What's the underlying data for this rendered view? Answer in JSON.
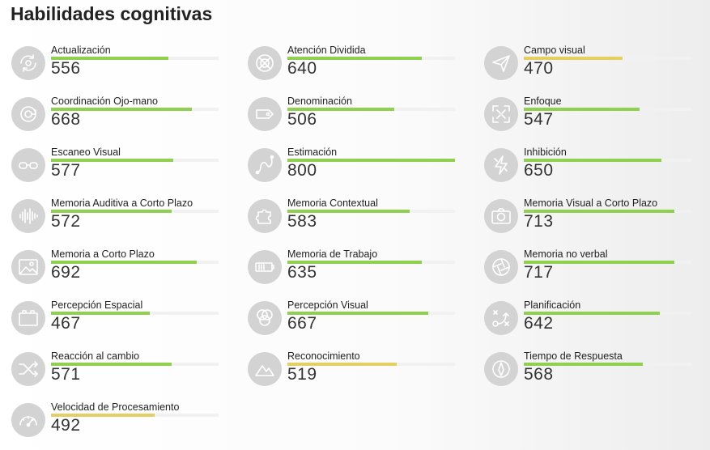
{
  "title": "Habilidades cognitivas",
  "colors": {
    "good": "#8fd14f",
    "warn": "#e5cf63",
    "track": "#f1f1f1",
    "icon_bg": "#d3d3d3"
  },
  "max_score": 800,
  "skills": [
    {
      "name": "Actualización",
      "score": "556",
      "level": 0.7,
      "status": "good",
      "icon": "rotate-target-icon"
    },
    {
      "name": "Atención Dividida",
      "score": "640",
      "level": 0.8,
      "status": "good",
      "icon": "crosshair-icon"
    },
    {
      "name": "Campo visual",
      "score": "470",
      "level": 0.59,
      "status": "warn",
      "icon": "paper-plane-icon"
    },
    {
      "name": "Coordinación Ojo-mano",
      "score": "668",
      "level": 0.84,
      "status": "good",
      "icon": "target-cycle-icon"
    },
    {
      "name": "Denominación",
      "score": "506",
      "level": 0.64,
      "status": "good",
      "icon": "tag-icon"
    },
    {
      "name": "Enfoque",
      "score": "547",
      "level": 0.69,
      "status": "good",
      "icon": "focus-frame-icon"
    },
    {
      "name": "Escaneo Visual",
      "score": "577",
      "level": 0.73,
      "status": "good",
      "icon": "glasses-icon"
    },
    {
      "name": "Estimación",
      "score": "800",
      "level": 1.0,
      "status": "good",
      "icon": "curve-path-icon"
    },
    {
      "name": "Inhibición",
      "score": "650",
      "level": 0.82,
      "status": "good",
      "icon": "lightning-icon"
    },
    {
      "name": "Memoria Auditiva a Corto Plazo",
      "score": "572",
      "level": 0.72,
      "status": "good",
      "icon": "sound-wave-icon"
    },
    {
      "name": "Memoria Contextual",
      "score": "583",
      "level": 0.73,
      "status": "good",
      "icon": "puzzle-icon"
    },
    {
      "name": "Memoria Visual a Corto Plazo",
      "score": "713",
      "level": 0.9,
      "status": "good",
      "icon": "camera-icon"
    },
    {
      "name": "Memoria a Corto Plazo",
      "score": "692",
      "level": 0.87,
      "status": "good",
      "icon": "image-icon"
    },
    {
      "name": "Memoria de Trabajo",
      "score": "635",
      "level": 0.8,
      "status": "good",
      "icon": "battery-icon"
    },
    {
      "name": "Memoria no verbal",
      "score": "717",
      "level": 0.9,
      "status": "good",
      "icon": "aperture-icon"
    },
    {
      "name": "Percepción Espacial",
      "score": "467",
      "level": 0.59,
      "status": "good",
      "icon": "box-icon"
    },
    {
      "name": "Percepción Visual",
      "score": "667",
      "level": 0.84,
      "status": "good",
      "icon": "overlap-circles-icon"
    },
    {
      "name": "Planificación",
      "score": "642",
      "level": 0.81,
      "status": "good",
      "icon": "strategy-icon"
    },
    {
      "name": "Reacción al cambio",
      "score": "571",
      "level": 0.72,
      "status": "good",
      "icon": "shuffle-icon"
    },
    {
      "name": "Reconocimiento",
      "score": "519",
      "level": 0.65,
      "status": "warn",
      "icon": "mountains-icon"
    },
    {
      "name": "Tiempo de Respuesta",
      "score": "568",
      "level": 0.71,
      "status": "good",
      "icon": "compass-icon"
    },
    {
      "name": "Velocidad de Procesamiento",
      "score": "492",
      "level": 0.62,
      "status": "warn",
      "icon": "speedometer-icon"
    }
  ]
}
